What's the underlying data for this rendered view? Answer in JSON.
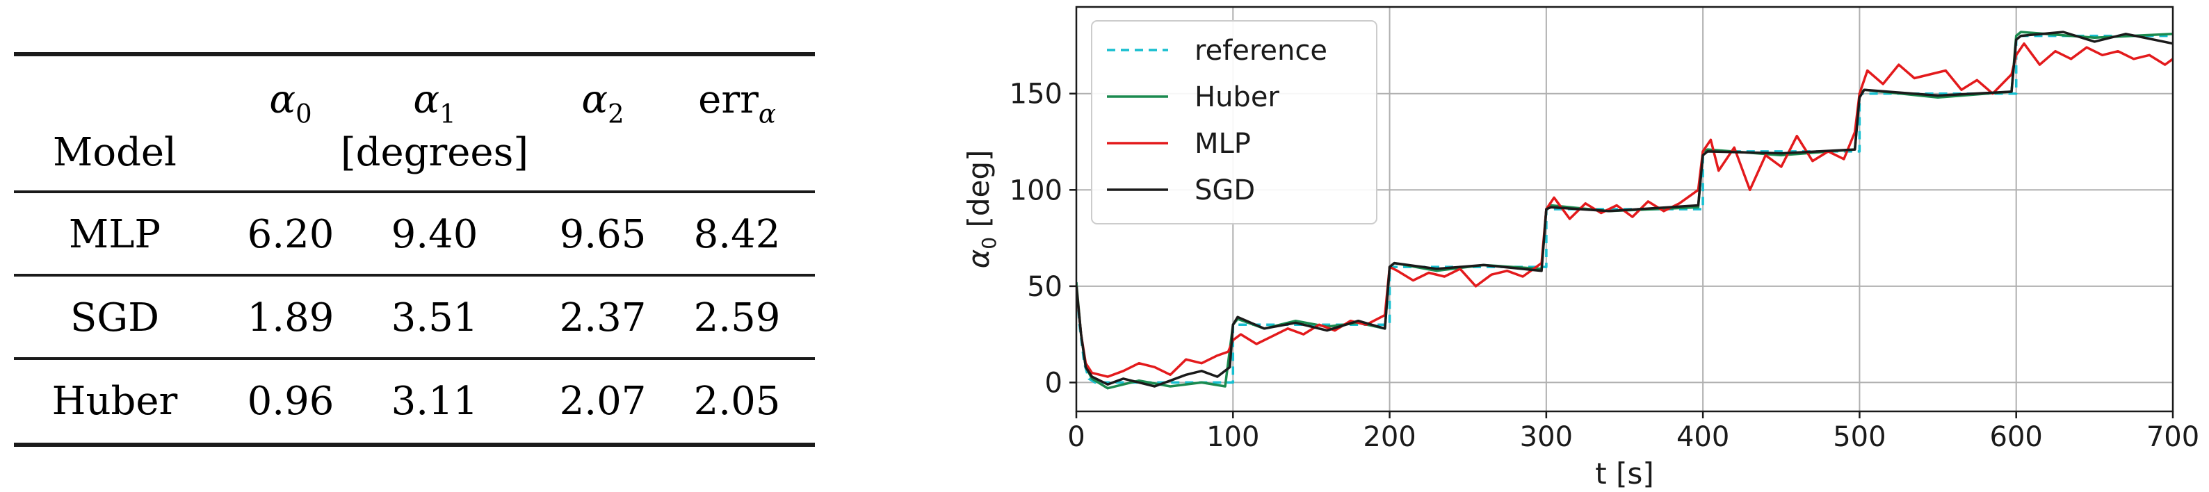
{
  "table": {
    "columns": [
      {
        "base": "α",
        "sub": "0"
      },
      {
        "base": "α",
        "sub": "1"
      },
      {
        "base": "α",
        "sub": "2"
      },
      {
        "base": "err",
        "sub": "α"
      }
    ],
    "row_header_label": "Model",
    "unit_label": "[degrees]",
    "rows": [
      {
        "model": "MLP",
        "values": [
          "6.20",
          "9.40",
          "9.65",
          "8.42"
        ]
      },
      {
        "model": "SGD",
        "values": [
          "1.89",
          "3.51",
          "2.37",
          "2.59"
        ]
      },
      {
        "model": "Huber",
        "values": [
          "0.96",
          "3.11",
          "2.07",
          "2.05"
        ]
      }
    ]
  },
  "chart_data": {
    "type": "line",
    "title": "",
    "xlabel": "t [s]",
    "ylabel_base": "α",
    "ylabel_sub": "0",
    "ylabel_unit": "[deg]",
    "xlim": [
      0,
      700
    ],
    "ylim": [
      -15,
      195
    ],
    "xticks": [
      0,
      100,
      200,
      300,
      400,
      500,
      600,
      700
    ],
    "yticks": [
      0,
      50,
      100,
      150
    ],
    "grid": true,
    "legend_position": "top-left",
    "series": [
      {
        "name": "reference",
        "color": "#17becf",
        "dash": "dashed",
        "x": [
          0,
          2,
          5,
          8,
          12,
          100,
          100,
          200,
          200,
          300,
          300,
          400,
          400,
          500,
          500,
          600,
          600,
          700
        ],
        "y": [
          52,
          30,
          10,
          2,
          0,
          0,
          30,
          30,
          60,
          60,
          90,
          90,
          120,
          120,
          150,
          150,
          180,
          180
        ]
      },
      {
        "name": "Huber",
        "color": "#1a8a4f",
        "dash": "solid",
        "x": [
          0,
          3,
          6,
          10,
          20,
          40,
          60,
          80,
          95,
          100,
          103,
          120,
          140,
          160,
          180,
          197,
          200,
          203,
          230,
          260,
          297,
          300,
          303,
          340,
          397,
          400,
          403,
          450,
          497,
          500,
          503,
          550,
          597,
          600,
          603,
          650,
          700
        ],
        "y": [
          52,
          25,
          8,
          2,
          -3,
          1,
          -2,
          0,
          -2,
          30,
          33,
          28,
          32,
          29,
          31,
          28,
          60,
          62,
          58,
          61,
          59,
          90,
          92,
          89,
          91,
          120,
          121,
          118,
          121,
          150,
          152,
          148,
          151,
          180,
          182,
          179,
          181
        ]
      },
      {
        "name": "MLP",
        "color": "#e31a1c",
        "dash": "solid",
        "x": [
          0,
          3,
          6,
          10,
          20,
          30,
          40,
          50,
          60,
          70,
          80,
          90,
          97,
          100,
          105,
          115,
          125,
          135,
          145,
          155,
          165,
          175,
          185,
          197,
          200,
          205,
          215,
          225,
          235,
          245,
          255,
          265,
          275,
          285,
          297,
          300,
          305,
          315,
          325,
          335,
          345,
          355,
          365,
          375,
          385,
          397,
          400,
          405,
          410,
          420,
          430,
          440,
          450,
          460,
          470,
          480,
          490,
          497,
          500,
          505,
          515,
          525,
          535,
          545,
          555,
          565,
          575,
          585,
          597,
          600,
          605,
          615,
          625,
          635,
          645,
          655,
          665,
          675,
          685,
          695,
          700
        ],
        "y": [
          50,
          25,
          10,
          5,
          3,
          6,
          10,
          8,
          4,
          12,
          10,
          14,
          16,
          22,
          25,
          20,
          24,
          28,
          25,
          30,
          27,
          32,
          30,
          35,
          60,
          58,
          53,
          57,
          55,
          59,
          50,
          56,
          58,
          55,
          62,
          90,
          96,
          85,
          93,
          88,
          92,
          86,
          94,
          89,
          93,
          100,
          120,
          126,
          110,
          122,
          100,
          118,
          112,
          128,
          115,
          120,
          116,
          130,
          150,
          162,
          155,
          165,
          158,
          160,
          162,
          152,
          157,
          150,
          160,
          170,
          176,
          165,
          172,
          168,
          174,
          170,
          172,
          168,
          170,
          165,
          168
        ]
      },
      {
        "name": "SGD",
        "color": "#1a1a1a",
        "dash": "solid",
        "x": [
          0,
          3,
          6,
          10,
          20,
          30,
          40,
          50,
          60,
          70,
          80,
          90,
          98,
          100,
          103,
          120,
          140,
          160,
          180,
          197,
          200,
          203,
          230,
          260,
          297,
          300,
          303,
          340,
          397,
          400,
          403,
          450,
          497,
          500,
          503,
          550,
          597,
          600,
          603,
          630,
          650,
          670,
          700
        ],
        "y": [
          50,
          25,
          8,
          3,
          -1,
          2,
          0,
          -2,
          1,
          4,
          6,
          3,
          8,
          30,
          34,
          28,
          31,
          27,
          32,
          28,
          60,
          62,
          59,
          61,
          58,
          90,
          91,
          89,
          92,
          118,
          120,
          119,
          121,
          148,
          152,
          149,
          151,
          178,
          180,
          182,
          177,
          181,
          176
        ]
      }
    ]
  }
}
